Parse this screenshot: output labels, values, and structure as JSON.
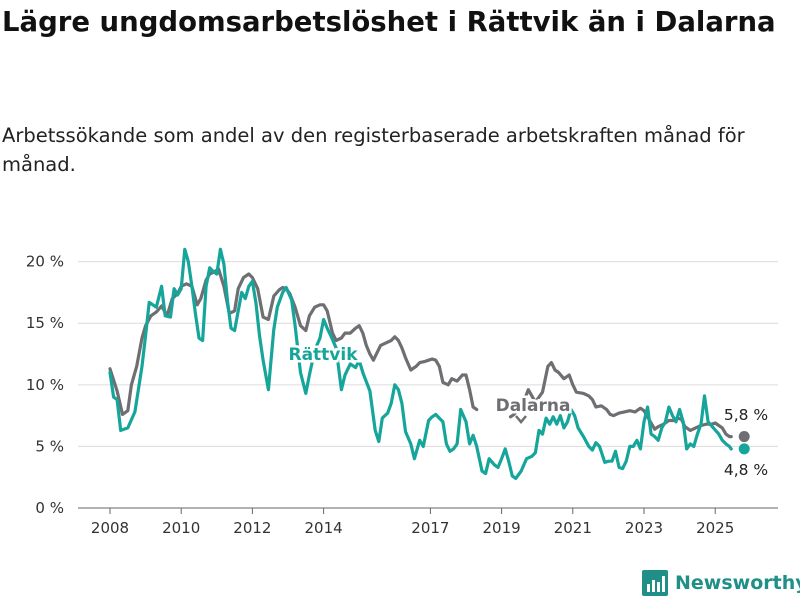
{
  "title": "Lägre ungdomsarbetslöshet i Rättvik än i Dalarna",
  "subtitle": "Arbetssökande som andel av den registerbaserade arbetskraften månad för månad.",
  "brand": "Newsworthy",
  "colors": {
    "rattvik": "#16a59a",
    "dalarna": "#6e6e73",
    "grid": "#dcdcdc",
    "brand": "#1f8f88"
  },
  "chart_data": {
    "type": "line",
    "x_unit": "year",
    "ylim": [
      0,
      22
    ],
    "yticks": [
      0,
      5,
      10,
      15,
      20
    ],
    "ytick_labels": [
      "0 %",
      "5 %",
      "10 %",
      "15 %",
      "20 %"
    ],
    "xticks": [
      2008,
      2010,
      2012,
      2014,
      2017,
      2019,
      2021,
      2023,
      2025
    ],
    "grid": true,
    "series": [
      {
        "name": "Rättvik",
        "end_label": "4,8 %",
        "data": [
          [
            2008.0,
            11.0
          ],
          [
            2008.1,
            9.0
          ],
          [
            2008.2,
            8.8
          ],
          [
            2008.3,
            6.3
          ],
          [
            2008.5,
            6.5
          ],
          [
            2008.7,
            7.8
          ],
          [
            2008.9,
            11.5
          ],
          [
            2009.0,
            14.0
          ],
          [
            2009.1,
            16.7
          ],
          [
            2009.3,
            16.3
          ],
          [
            2009.45,
            18.0
          ],
          [
            2009.55,
            15.6
          ],
          [
            2009.7,
            15.5
          ],
          [
            2009.8,
            17.8
          ],
          [
            2009.9,
            17.3
          ],
          [
            2010.0,
            17.8
          ],
          [
            2010.1,
            21.0
          ],
          [
            2010.2,
            20.0
          ],
          [
            2010.3,
            18.0
          ],
          [
            2010.4,
            15.8
          ],
          [
            2010.5,
            13.8
          ],
          [
            2010.6,
            13.6
          ],
          [
            2010.7,
            18.0
          ],
          [
            2010.8,
            19.5
          ],
          [
            2010.9,
            19.2
          ],
          [
            2011.0,
            19.0
          ],
          [
            2011.1,
            21.0
          ],
          [
            2011.2,
            19.8
          ],
          [
            2011.3,
            16.8
          ],
          [
            2011.4,
            14.6
          ],
          [
            2011.5,
            14.4
          ],
          [
            2011.6,
            16.0
          ],
          [
            2011.7,
            17.5
          ],
          [
            2011.8,
            17.0
          ],
          [
            2011.9,
            18.0
          ],
          [
            2012.0,
            18.4
          ],
          [
            2012.1,
            16.6
          ],
          [
            2012.2,
            14.0
          ],
          [
            2012.3,
            12.0
          ],
          [
            2012.45,
            9.6
          ],
          [
            2012.6,
            14.5
          ],
          [
            2012.7,
            16.3
          ],
          [
            2012.85,
            17.5
          ],
          [
            2012.95,
            17.9
          ],
          [
            2013.1,
            16.9
          ],
          [
            2013.2,
            14.8
          ],
          [
            2013.35,
            11.0
          ],
          [
            2013.5,
            9.3
          ],
          [
            2013.6,
            10.8
          ],
          [
            2013.75,
            12.8
          ],
          [
            2013.9,
            13.8
          ],
          [
            2014.0,
            15.3
          ],
          [
            2014.1,
            14.6
          ],
          [
            2014.2,
            14.0
          ],
          [
            2014.35,
            13.0
          ],
          [
            2014.5,
            9.6
          ],
          [
            2014.6,
            10.8
          ],
          [
            2014.75,
            11.7
          ],
          [
            2014.9,
            11.4
          ],
          [
            2015.0,
            12.0
          ],
          [
            2015.1,
            11.0
          ],
          [
            2015.3,
            9.5
          ],
          [
            2015.45,
            6.3
          ],
          [
            2015.55,
            5.4
          ],
          [
            2015.65,
            7.3
          ],
          [
            2015.8,
            7.7
          ],
          [
            2015.9,
            8.5
          ],
          [
            2016.0,
            10.0
          ],
          [
            2016.1,
            9.6
          ],
          [
            2016.2,
            8.5
          ],
          [
            2016.3,
            6.2
          ],
          [
            2016.45,
            5.2
          ],
          [
            2016.55,
            4.0
          ],
          [
            2016.7,
            5.5
          ],
          [
            2016.8,
            5.0
          ],
          [
            2016.95,
            7.1
          ],
          [
            2017.05,
            7.4
          ],
          [
            2017.15,
            7.6
          ],
          [
            2017.25,
            7.3
          ],
          [
            2017.35,
            7.0
          ],
          [
            2017.45,
            5.2
          ],
          [
            2017.55,
            4.6
          ],
          [
            2017.65,
            4.8
          ],
          [
            2017.75,
            5.2
          ],
          [
            2017.85,
            8.0
          ],
          [
            2018.0,
            7.0
          ],
          [
            2018.1,
            5.2
          ],
          [
            2018.2,
            5.9
          ],
          [
            2018.3,
            5.0
          ],
          [
            2018.45,
            3.0
          ],
          [
            2018.55,
            2.8
          ],
          [
            2018.65,
            4.0
          ],
          [
            2018.8,
            3.5
          ],
          [
            2018.9,
            3.3
          ],
          [
            2019.0,
            4.0
          ],
          [
            2019.1,
            4.8
          ],
          [
            2019.2,
            3.8
          ],
          [
            2019.3,
            2.6
          ],
          [
            2019.4,
            2.4
          ],
          [
            2019.55,
            3.0
          ],
          [
            2019.7,
            4.0
          ],
          [
            2019.85,
            4.2
          ],
          [
            2019.95,
            4.5
          ],
          [
            2020.05,
            6.3
          ],
          [
            2020.15,
            6.0
          ],
          [
            2020.25,
            7.3
          ],
          [
            2020.35,
            6.8
          ],
          [
            2020.45,
            7.4
          ],
          [
            2020.55,
            6.8
          ],
          [
            2020.65,
            7.5
          ],
          [
            2020.75,
            6.5
          ],
          [
            2020.85,
            7.0
          ],
          [
            2020.95,
            8.0
          ],
          [
            2021.05,
            7.5
          ],
          [
            2021.15,
            6.5
          ],
          [
            2021.3,
            5.8
          ],
          [
            2021.45,
            5.0
          ],
          [
            2021.55,
            4.7
          ],
          [
            2021.65,
            5.3
          ],
          [
            2021.75,
            5.0
          ],
          [
            2021.9,
            3.7
          ],
          [
            2022.0,
            3.8
          ],
          [
            2022.1,
            3.8
          ],
          [
            2022.2,
            4.6
          ],
          [
            2022.3,
            3.3
          ],
          [
            2022.4,
            3.2
          ],
          [
            2022.5,
            3.8
          ],
          [
            2022.6,
            5.0
          ],
          [
            2022.7,
            5.0
          ],
          [
            2022.8,
            5.5
          ],
          [
            2022.9,
            4.8
          ],
          [
            2023.0,
            7.0
          ],
          [
            2023.1,
            8.2
          ],
          [
            2023.2,
            6.0
          ],
          [
            2023.3,
            5.8
          ],
          [
            2023.4,
            5.5
          ],
          [
            2023.5,
            6.5
          ],
          [
            2023.6,
            7.0
          ],
          [
            2023.7,
            8.2
          ],
          [
            2023.8,
            7.5
          ],
          [
            2023.9,
            7.0
          ],
          [
            2024.0,
            8.0
          ],
          [
            2024.1,
            7.0
          ],
          [
            2024.2,
            4.8
          ],
          [
            2024.3,
            5.2
          ],
          [
            2024.4,
            5.0
          ],
          [
            2024.5,
            6.0
          ],
          [
            2024.6,
            6.8
          ],
          [
            2024.7,
            9.1
          ],
          [
            2024.8,
            7.0
          ],
          [
            2024.95,
            6.5
          ],
          [
            2025.1,
            6.0
          ],
          [
            2025.2,
            5.5
          ],
          [
            2025.3,
            5.2
          ],
          [
            2025.4,
            5.0
          ],
          [
            2025.45,
            4.8
          ]
        ]
      },
      {
        "name": "Dalarna",
        "end_label": "5,8 %",
        "data": [
          [
            2008.0,
            11.3
          ],
          [
            2008.2,
            9.5
          ],
          [
            2008.35,
            7.6
          ],
          [
            2008.5,
            7.9
          ],
          [
            2008.6,
            10.0
          ],
          [
            2008.75,
            11.5
          ],
          [
            2008.9,
            13.8
          ],
          [
            2009.0,
            14.8
          ],
          [
            2009.15,
            15.6
          ],
          [
            2009.3,
            15.9
          ],
          [
            2009.45,
            16.4
          ],
          [
            2009.6,
            15.6
          ],
          [
            2009.75,
            17.0
          ],
          [
            2009.9,
            17.4
          ],
          [
            2010.0,
            18.0
          ],
          [
            2010.15,
            18.2
          ],
          [
            2010.3,
            18.0
          ],
          [
            2010.45,
            16.5
          ],
          [
            2010.55,
            17.0
          ],
          [
            2010.7,
            18.5
          ],
          [
            2010.8,
            19.0
          ],
          [
            2010.95,
            19.2
          ],
          [
            2011.05,
            19.4
          ],
          [
            2011.2,
            18.0
          ],
          [
            2011.35,
            15.8
          ],
          [
            2011.5,
            16.0
          ],
          [
            2011.6,
            17.8
          ],
          [
            2011.75,
            18.7
          ],
          [
            2011.9,
            19.0
          ],
          [
            2012.0,
            18.7
          ],
          [
            2012.15,
            17.8
          ],
          [
            2012.3,
            15.5
          ],
          [
            2012.45,
            15.3
          ],
          [
            2012.6,
            17.2
          ],
          [
            2012.75,
            17.7
          ],
          [
            2012.85,
            17.9
          ],
          [
            2012.95,
            17.8
          ],
          [
            2013.05,
            17.4
          ],
          [
            2013.2,
            16.3
          ],
          [
            2013.35,
            14.8
          ],
          [
            2013.5,
            14.4
          ],
          [
            2013.6,
            15.6
          ],
          [
            2013.75,
            16.3
          ],
          [
            2013.9,
            16.5
          ],
          [
            2014.0,
            16.5
          ],
          [
            2014.1,
            16.0
          ],
          [
            2014.25,
            14.2
          ],
          [
            2014.35,
            13.6
          ],
          [
            2014.5,
            13.8
          ],
          [
            2014.6,
            14.2
          ],
          [
            2014.75,
            14.2
          ],
          [
            2014.9,
            14.6
          ],
          [
            2015.0,
            14.8
          ],
          [
            2015.1,
            14.2
          ],
          [
            2015.2,
            13.2
          ],
          [
            2015.3,
            12.5
          ],
          [
            2015.4,
            12.0
          ],
          [
            2015.5,
            12.6
          ],
          [
            2015.6,
            13.2
          ],
          [
            2015.75,
            13.4
          ],
          [
            2015.9,
            13.6
          ],
          [
            2016.0,
            13.9
          ],
          [
            2016.1,
            13.6
          ],
          [
            2016.2,
            13.0
          ],
          [
            2016.3,
            12.2
          ],
          [
            2016.45,
            11.2
          ],
          [
            2016.6,
            11.5
          ],
          [
            2016.7,
            11.8
          ],
          [
            2016.85,
            11.9
          ],
          [
            2016.95,
            12.0
          ],
          [
            2017.05,
            12.1
          ],
          [
            2017.15,
            12.0
          ],
          [
            2017.25,
            11.5
          ],
          [
            2017.35,
            10.2
          ],
          [
            2017.5,
            10.0
          ],
          [
            2017.6,
            10.5
          ],
          [
            2017.75,
            10.3
          ],
          [
            2017.9,
            10.8
          ],
          [
            2018.0,
            10.8
          ],
          [
            2018.1,
            9.6
          ],
          [
            2018.2,
            8.2
          ],
          [
            2018.3,
            8.0
          ]
        ]
      },
      {
        "name": "Dalarna",
        "data": [
          [
            2019.25,
            7.4
          ],
          [
            2019.35,
            7.6
          ],
          [
            2019.6,
            8.5
          ],
          [
            2019.75,
            9.6
          ],
          [
            2019.95,
            8.6
          ],
          [
            2020.05,
            9.0
          ],
          [
            2020.15,
            9.4
          ],
          [
            2020.3,
            11.5
          ],
          [
            2020.4,
            11.8
          ],
          [
            2020.5,
            11.2
          ],
          [
            2020.6,
            11.0
          ],
          [
            2020.75,
            10.5
          ],
          [
            2020.9,
            10.8
          ],
          [
            2021.0,
            10.0
          ],
          [
            2021.1,
            9.4
          ],
          [
            2021.3,
            9.3
          ],
          [
            2021.45,
            9.1
          ],
          [
            2021.55,
            8.8
          ],
          [
            2021.65,
            8.2
          ],
          [
            2021.8,
            8.3
          ],
          [
            2021.95,
            8.0
          ],
          [
            2022.05,
            7.6
          ],
          [
            2022.15,
            7.5
          ],
          [
            2022.3,
            7.7
          ],
          [
            2022.45,
            7.8
          ],
          [
            2022.6,
            7.9
          ],
          [
            2022.75,
            7.8
          ],
          [
            2022.9,
            8.1
          ],
          [
            2023.0,
            7.9
          ],
          [
            2023.1,
            7.4
          ],
          [
            2023.2,
            6.9
          ],
          [
            2023.3,
            6.4
          ],
          [
            2023.4,
            6.6
          ],
          [
            2023.55,
            6.8
          ],
          [
            2023.7,
            7.1
          ],
          [
            2023.85,
            7.1
          ],
          [
            2023.95,
            7.3
          ],
          [
            2024.05,
            7.2
          ],
          [
            2024.15,
            6.6
          ],
          [
            2024.3,
            6.3
          ],
          [
            2024.45,
            6.5
          ],
          [
            2024.6,
            6.7
          ],
          [
            2024.75,
            6.8
          ],
          [
            2024.9,
            6.8
          ],
          [
            2025.0,
            6.9
          ],
          [
            2025.1,
            6.7
          ],
          [
            2025.2,
            6.5
          ],
          [
            2025.3,
            6.0
          ],
          [
            2025.4,
            5.8
          ],
          [
            2025.45,
            5.8
          ]
        ]
      }
    ],
    "annotations": [
      "Rättvik",
      "Dalarna"
    ]
  }
}
